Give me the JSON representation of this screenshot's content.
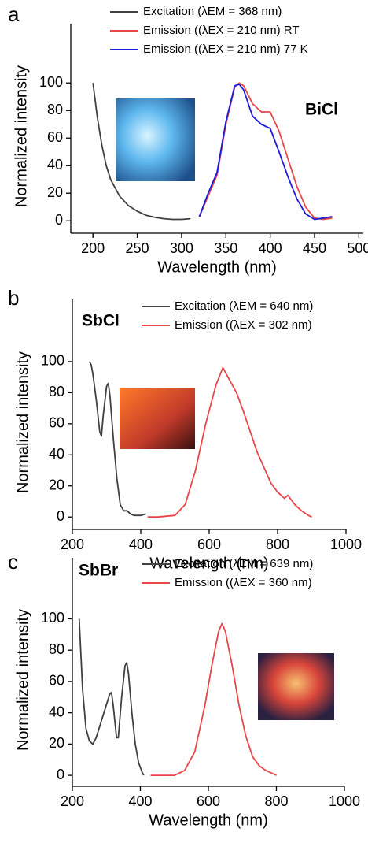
{
  "chart_data": [
    {
      "type": "line",
      "panel_label": "a",
      "annotation": "BiCl",
      "x_label": "Wavelength (nm)",
      "y_label": "Normalized intensity",
      "xlim": [
        175,
        505
      ],
      "xticks": [
        200,
        250,
        300,
        350,
        400,
        450,
        500
      ],
      "ylim": [
        -9,
        143
      ],
      "yticks": [
        0,
        20,
        40,
        60,
        80,
        100
      ],
      "legend": "upper center",
      "series": [
        {
          "name": "Excitation (λEM = 368 nm)",
          "color": "#404040",
          "x": [
            200,
            205,
            210,
            215,
            220,
            230,
            240,
            250,
            260,
            270,
            280,
            290,
            300,
            310
          ],
          "values": [
            100,
            75,
            55,
            40,
            30,
            18,
            11,
            7,
            4,
            2.5,
            1.5,
            1,
            1,
            1.5
          ]
        },
        {
          "name": "Emission ((λEX = 210 nm) RT",
          "color": "#e8474a",
          "x": [
            320,
            330,
            340,
            350,
            360,
            365,
            370,
            380,
            390,
            400,
            410,
            420,
            430,
            440,
            450,
            460,
            470
          ],
          "values": [
            3,
            18,
            33,
            70,
            97,
            100,
            98,
            85,
            79,
            79,
            65,
            45,
            25,
            10,
            2,
            1,
            2
          ]
        },
        {
          "name": "Emission ((λEX = 210 nm) 77 K",
          "color": "#1c1cd8",
          "x": [
            320,
            330,
            340,
            350,
            360,
            365,
            370,
            380,
            390,
            400,
            410,
            420,
            430,
            440,
            450,
            460,
            470
          ],
          "values": [
            3,
            20,
            35,
            72,
            98,
            99,
            95,
            76,
            70,
            67,
            50,
            32,
            16,
            5,
            1,
            2,
            3
          ]
        }
      ]
    },
    {
      "type": "line",
      "panel_label": "b",
      "annotation": "SbCl",
      "x_label": "Wavelength (nm)",
      "y_label": "Normalized intensity",
      "xlim": [
        200,
        1000
      ],
      "xticks": [
        200,
        400,
        600,
        800,
        1000
      ],
      "ylim": [
        -8,
        140
      ],
      "yticks": [
        0,
        20,
        40,
        60,
        80,
        100
      ],
      "legend": "upper right",
      "series": [
        {
          "name": "Excitation (λEM = 640 nm)",
          "color": "#404040",
          "x": [
            250,
            255,
            260,
            270,
            280,
            285,
            290,
            300,
            305,
            310,
            320,
            330,
            340,
            350,
            360,
            370,
            380,
            400,
            415
          ],
          "values": [
            100,
            98,
            92,
            75,
            55,
            52,
            65,
            84,
            86,
            78,
            50,
            25,
            8,
            4,
            4,
            2,
            1,
            1,
            2
          ]
        },
        {
          "name": "Emission ((λEX = 302 nm)",
          "color": "#e8474a",
          "x": [
            420,
            450,
            500,
            530,
            560,
            590,
            620,
            640,
            660,
            680,
            700,
            720,
            740,
            760,
            780,
            800,
            820,
            830,
            850,
            870,
            890,
            900
          ],
          "values": [
            0,
            0,
            1,
            8,
            30,
            60,
            85,
            96,
            88,
            80,
            68,
            55,
            42,
            32,
            22,
            16,
            12,
            14,
            8,
            4,
            1,
            0
          ]
        }
      ]
    },
    {
      "type": "line",
      "panel_label": "c",
      "annotation": "SbBr",
      "x_label": "Wavelength (nm)",
      "y_label": "Normalized intensity",
      "xlim": [
        200,
        1000
      ],
      "xticks": [
        200,
        400,
        600,
        800,
        1000
      ],
      "ylim": [
        -7,
        139
      ],
      "yticks": [
        0,
        20,
        40,
        60,
        80,
        100
      ],
      "legend": "upper right",
      "series": [
        {
          "name": "Excitation (λEM = 639 nm)",
          "color": "#404040",
          "x": [
            220,
            230,
            240,
            250,
            260,
            270,
            290,
            310,
            315,
            320,
            330,
            335,
            345,
            355,
            360,
            365,
            375,
            385,
            395,
            405,
            410
          ],
          "values": [
            100,
            55,
            30,
            22,
            20,
            24,
            38,
            52,
            53,
            45,
            24,
            24,
            50,
            70,
            72,
            65,
            40,
            20,
            8,
            2,
            0
          ]
        },
        {
          "name": "Emission ((λEX = 360 nm)",
          "color": "#e8474a",
          "x": [
            430,
            460,
            500,
            530,
            560,
            590,
            610,
            630,
            640,
            650,
            670,
            690,
            710,
            730,
            750,
            770,
            790,
            800
          ],
          "values": [
            0,
            0,
            0,
            3,
            15,
            45,
            70,
            92,
            97,
            92,
            70,
            45,
            25,
            12,
            6,
            3,
            1,
            0
          ]
        }
      ]
    }
  ]
}
